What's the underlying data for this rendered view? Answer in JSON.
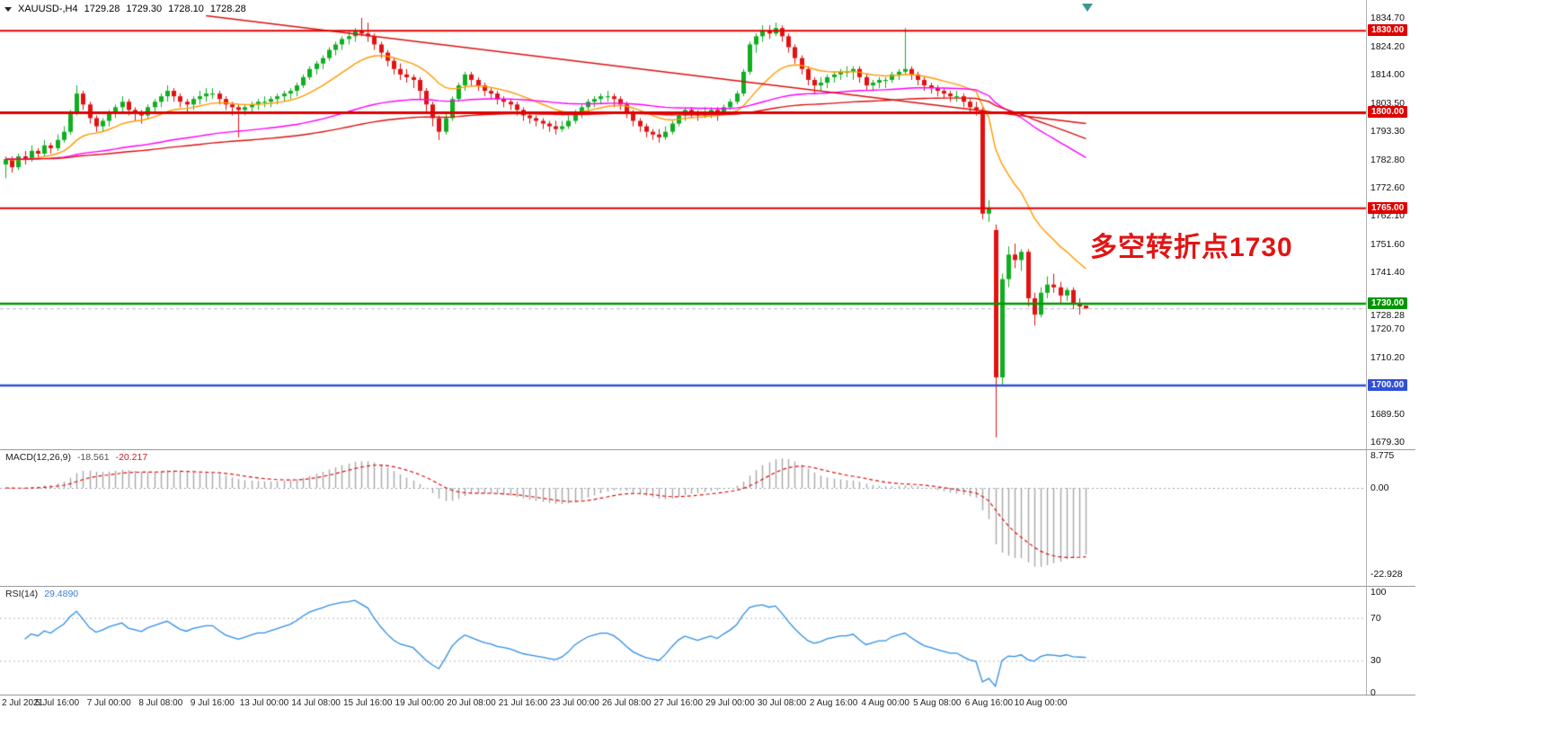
{
  "quote": {
    "symbol": "XAUUSD-,H4",
    "open": "1729.28",
    "high": "1729.30",
    "low": "1728.10",
    "close": "1728.28"
  },
  "annotation": {
    "text": "多空转折点1730",
    "color": "#e01515"
  },
  "chart_data": {
    "type": "candlestick",
    "symbol": "XAUUSD-",
    "timeframe": "H4",
    "ylim": [
      1679.3,
      1834.7
    ],
    "price_axis_ticks": [
      "1834.70",
      "1824.20",
      "1814.00",
      "1803.50",
      "1793.30",
      "1782.80",
      "1772.60",
      "1762.10",
      "1751.60",
      "1741.40",
      "1720.70",
      "1710.20",
      "1689.50",
      "1679.30"
    ],
    "time_labels": [
      "2 Jul 2021",
      "5 Jul 16:00",
      "7 Jul 00:00",
      "8 Jul 08:00",
      "9 Jul 16:00",
      "13 Jul 00:00",
      "14 Jul 08:00",
      "15 Jul 16:00",
      "19 Jul 00:00",
      "20 Jul 08:00",
      "21 Jul 16:00",
      "23 Jul 00:00",
      "26 Jul 08:00",
      "27 Jul 16:00",
      "29 Jul 00:00",
      "30 Jul 08:00",
      "2 Aug 16:00",
      "4 Aug 00:00",
      "5 Aug 08:00",
      "6 Aug 16:00",
      "10 Aug 00:00"
    ],
    "levels": [
      {
        "price": 1830,
        "label": "1830.00",
        "color": "#e00000",
        "width": 2
      },
      {
        "price": 1800,
        "label": "1800.00",
        "color": "#e00000",
        "width": 3
      },
      {
        "price": 1765,
        "label": "1765.00",
        "color": "#e00000",
        "width": 2
      },
      {
        "price": 1730,
        "label": "1730.00",
        "color": "#009600",
        "width": 2.5
      },
      {
        "price": 1700,
        "label": "1700.00",
        "color": "#3050d8",
        "width": 2.5
      }
    ],
    "current_price": {
      "label": "1728.28",
      "price": 1728.28
    },
    "trendline": {
      "from_index": 31,
      "from_price": 1835.5,
      "to_index": 167,
      "to_price": 1796,
      "color": "#dd1111"
    },
    "moving_averages": [
      {
        "name": "ma-fast",
        "period": 16,
        "color": "#ff9a00"
      },
      {
        "name": "ma-slow",
        "period": 80,
        "color": "#ff00ff"
      },
      {
        "name": "ma-baseline",
        "period": 140,
        "color": "#dd1111"
      }
    ],
    "indicators": {
      "macd": {
        "title": "MACD(12,26,9)",
        "fast": 12,
        "slow": 26,
        "signal": 9,
        "value_macd": "-18.561",
        "value_signal": "-20.217",
        "axis_labels": [
          {
            "value": 8.775,
            "label": "8.775"
          },
          {
            "value": 0,
            "label": "0.00"
          },
          {
            "value": -22.928,
            "label": "-22.928"
          }
        ],
        "histogram_color": "#a8a8a8",
        "signal_color": "#dd1111",
        "range": [
          -26,
          10
        ]
      },
      "rsi": {
        "title": "RSI(14)",
        "period": 14,
        "value": "29.4890",
        "levels": [
          70,
          30
        ],
        "axis_labels": [
          {
            "value": 100,
            "label": "100"
          },
          {
            "value": 70,
            "label": "70"
          },
          {
            "value": 30,
            "label": "30"
          },
          {
            "value": 0,
            "label": "0"
          }
        ],
        "line_color": "#2e8fe8",
        "range": [
          0,
          100
        ]
      }
    },
    "colors": {
      "bull": "#0faf20",
      "bear": "#e21212",
      "background": "#ffffff",
      "axis_text": "#111111"
    },
    "candles": [
      [
        1781,
        1784,
        1776,
        1783
      ],
      [
        1783,
        1784,
        1778,
        1780
      ],
      [
        1780,
        1785,
        1779,
        1784
      ],
      [
        1784,
        1786,
        1781,
        1783
      ],
      [
        1783,
        1788,
        1782,
        1786
      ],
      [
        1786,
        1787,
        1783,
        1785
      ],
      [
        1785,
        1790,
        1784,
        1788
      ],
      [
        1788,
        1789,
        1785,
        1787
      ],
      [
        1787,
        1792,
        1786,
        1790
      ],
      [
        1790,
        1795,
        1789,
        1793
      ],
      [
        1793,
        1801,
        1792,
        1800
      ],
      [
        1800,
        1810,
        1799,
        1807
      ],
      [
        1807,
        1808,
        1801,
        1803
      ],
      [
        1803,
        1804,
        1796,
        1798
      ],
      [
        1798,
        1799,
        1793,
        1795
      ],
      [
        1795,
        1798,
        1793,
        1797
      ],
      [
        1797,
        1801,
        1795,
        1800
      ],
      [
        1800,
        1803,
        1798,
        1802
      ],
      [
        1802,
        1806,
        1800,
        1804
      ],
      [
        1804,
        1805,
        1799,
        1801
      ],
      [
        1801,
        1802,
        1797,
        1800
      ],
      [
        1800,
        1801,
        1796,
        1799
      ],
      [
        1799,
        1803,
        1798,
        1802
      ],
      [
        1802,
        1805,
        1800,
        1804
      ],
      [
        1804,
        1807,
        1802,
        1806
      ],
      [
        1806,
        1810,
        1804,
        1808
      ],
      [
        1808,
        1809,
        1804,
        1806
      ],
      [
        1806,
        1807,
        1802,
        1804
      ],
      [
        1804,
        1805,
        1800,
        1803
      ],
      [
        1803,
        1806,
        1801,
        1805
      ],
      [
        1805,
        1808,
        1803,
        1806
      ],
      [
        1806,
        1809,
        1804,
        1807
      ],
      [
        1807,
        1809,
        1805,
        1807
      ],
      [
        1807,
        1808,
        1803,
        1805
      ],
      [
        1805,
        1806,
        1801,
        1803
      ],
      [
        1803,
        1804,
        1799,
        1802
      ],
      [
        1802,
        1803,
        1791,
        1801
      ],
      [
        1801,
        1803,
        1799,
        1802
      ],
      [
        1802,
        1804,
        1800,
        1803
      ],
      [
        1803,
        1805,
        1801,
        1804
      ],
      [
        1804,
        1806,
        1802,
        1804
      ],
      [
        1804,
        1806,
        1802,
        1805
      ],
      [
        1805,
        1807,
        1803,
        1806
      ],
      [
        1806,
        1808,
        1804,
        1807
      ],
      [
        1807,
        1809,
        1805,
        1808
      ],
      [
        1808,
        1811,
        1806,
        1810
      ],
      [
        1810,
        1814,
        1809,
        1813
      ],
      [
        1813,
        1817,
        1812,
        1816
      ],
      [
        1816,
        1819,
        1814,
        1818
      ],
      [
        1818,
        1821,
        1816,
        1820
      ],
      [
        1820,
        1824,
        1819,
        1823
      ],
      [
        1823,
        1826,
        1821,
        1825
      ],
      [
        1825,
        1828,
        1823,
        1827
      ],
      [
        1827,
        1830,
        1825,
        1828
      ],
      [
        1828,
        1831,
        1826,
        1830
      ],
      [
        1830,
        1834.7,
        1828,
        1829
      ],
      [
        1829,
        1833,
        1826,
        1828
      ],
      [
        1828,
        1829,
        1823,
        1825
      ],
      [
        1825,
        1826,
        1820,
        1822
      ],
      [
        1822,
        1823,
        1817,
        1819
      ],
      [
        1819,
        1820,
        1814,
        1816
      ],
      [
        1816,
        1818,
        1812,
        1814
      ],
      [
        1814,
        1816,
        1811,
        1813
      ],
      [
        1813,
        1814,
        1809,
        1812
      ],
      [
        1812,
        1813,
        1805,
        1808
      ],
      [
        1808,
        1809,
        1800,
        1803
      ],
      [
        1803,
        1804,
        1795,
        1798
      ],
      [
        1798,
        1799,
        1790,
        1793
      ],
      [
        1793,
        1800,
        1792,
        1798
      ],
      [
        1798,
        1806,
        1797,
        1805
      ],
      [
        1805,
        1811,
        1804,
        1810
      ],
      [
        1810,
        1815,
        1808,
        1814
      ],
      [
        1814,
        1815,
        1810,
        1812
      ],
      [
        1812,
        1813,
        1808,
        1810
      ],
      [
        1810,
        1811,
        1806,
        1808
      ],
      [
        1808,
        1809,
        1805,
        1807
      ],
      [
        1807,
        1808,
        1803,
        1805
      ],
      [
        1805,
        1806,
        1802,
        1804
      ],
      [
        1804,
        1805,
        1801,
        1803
      ],
      [
        1803,
        1804,
        1799,
        1801
      ],
      [
        1801,
        1802,
        1797,
        1799
      ],
      [
        1799,
        1800,
        1796,
        1798
      ],
      [
        1798,
        1799,
        1795,
        1797
      ],
      [
        1797,
        1798,
        1794,
        1796
      ],
      [
        1796,
        1797,
        1793,
        1795
      ],
      [
        1795,
        1797,
        1792,
        1794
      ],
      [
        1794,
        1797,
        1793,
        1795
      ],
      [
        1795,
        1799,
        1794,
        1797
      ],
      [
        1797,
        1801,
        1796,
        1800
      ],
      [
        1800,
        1803,
        1798,
        1802
      ],
      [
        1802,
        1805,
        1800,
        1804
      ],
      [
        1804,
        1806,
        1802,
        1805
      ],
      [
        1805,
        1807,
        1803,
        1806
      ],
      [
        1806,
        1808,
        1804,
        1806
      ],
      [
        1806,
        1807,
        1802,
        1805
      ],
      [
        1805,
        1806,
        1801,
        1803
      ],
      [
        1803,
        1804,
        1798,
        1800
      ],
      [
        1800,
        1801,
        1795,
        1797
      ],
      [
        1797,
        1798,
        1793,
        1795
      ],
      [
        1795,
        1796,
        1791,
        1793
      ],
      [
        1793,
        1794,
        1790,
        1792
      ],
      [
        1792,
        1794,
        1789,
        1791
      ],
      [
        1791,
        1795,
        1790,
        1793
      ],
      [
        1793,
        1797,
        1792,
        1796
      ],
      [
        1796,
        1800,
        1795,
        1799
      ],
      [
        1799,
        1802,
        1797,
        1801
      ],
      [
        1801,
        1802,
        1798,
        1800
      ],
      [
        1800,
        1801,
        1797,
        1799
      ],
      [
        1799,
        1802,
        1798,
        1800
      ],
      [
        1800,
        1802,
        1798,
        1801
      ],
      [
        1801,
        1802,
        1797,
        1800
      ],
      [
        1800,
        1803,
        1799,
        1802
      ],
      [
        1802,
        1805,
        1801,
        1804
      ],
      [
        1804,
        1808,
        1803,
        1807
      ],
      [
        1807,
        1816,
        1806,
        1815
      ],
      [
        1815,
        1826,
        1814,
        1825
      ],
      [
        1825,
        1829,
        1822,
        1828
      ],
      [
        1828,
        1832,
        1826,
        1830
      ],
      [
        1830,
        1832,
        1827,
        1829
      ],
      [
        1829,
        1833,
        1828,
        1831
      ],
      [
        1831,
        1832,
        1826,
        1828
      ],
      [
        1828,
        1829,
        1822,
        1824
      ],
      [
        1824,
        1825,
        1818,
        1820
      ],
      [
        1820,
        1821,
        1814,
        1816
      ],
      [
        1816,
        1817,
        1810,
        1812
      ],
      [
        1812,
        1813,
        1807,
        1810
      ],
      [
        1810,
        1813,
        1808,
        1811
      ],
      [
        1811,
        1814,
        1809,
        1813
      ],
      [
        1813,
        1815,
        1811,
        1814
      ],
      [
        1814,
        1816,
        1812,
        1815
      ],
      [
        1815,
        1817,
        1813,
        1815
      ],
      [
        1815,
        1817,
        1812,
        1816
      ],
      [
        1816,
        1817,
        1811,
        1813
      ],
      [
        1813,
        1814,
        1808,
        1810
      ],
      [
        1810,
        1812,
        1808,
        1811
      ],
      [
        1811,
        1813,
        1809,
        1812
      ],
      [
        1812,
        1813,
        1809,
        1812
      ],
      [
        1812,
        1815,
        1811,
        1814
      ],
      [
        1814,
        1816,
        1812,
        1815
      ],
      [
        1815,
        1831,
        1814,
        1816
      ],
      [
        1816,
        1817,
        1812,
        1814
      ],
      [
        1814,
        1815,
        1810,
        1812
      ],
      [
        1812,
        1813,
        1808,
        1810
      ],
      [
        1810,
        1811,
        1807,
        1809
      ],
      [
        1809,
        1810,
        1806,
        1808
      ],
      [
        1808,
        1809,
        1805,
        1807
      ],
      [
        1807,
        1808,
        1804,
        1806
      ],
      [
        1806,
        1808,
        1804,
        1806
      ],
      [
        1806,
        1807,
        1802,
        1804
      ],
      [
        1804,
        1805,
        1800,
        1802
      ],
      [
        1802,
        1804,
        1799,
        1801
      ],
      [
        1801,
        1802,
        1761,
        1763
      ],
      [
        1763,
        1768,
        1760,
        1765
      ],
      [
        1757,
        1759,
        1681,
        1703
      ],
      [
        1703,
        1741,
        1700,
        1739
      ],
      [
        1739,
        1751,
        1736,
        1748
      ],
      [
        1748,
        1752,
        1743,
        1746
      ],
      [
        1746,
        1750,
        1742,
        1749
      ],
      [
        1749,
        1750,
        1729,
        1732
      ],
      [
        1732,
        1734,
        1722,
        1726
      ],
      [
        1726,
        1736,
        1725,
        1734
      ],
      [
        1734,
        1740,
        1732,
        1737
      ],
      [
        1737,
        1741,
        1734,
        1736
      ],
      [
        1736,
        1738,
        1730,
        1733
      ],
      [
        1733,
        1736,
        1731,
        1735
      ],
      [
        1735,
        1736,
        1728,
        1730
      ],
      [
        1730,
        1732,
        1726,
        1729
      ],
      [
        1729.28,
        1729.3,
        1728.1,
        1728.28
      ]
    ]
  }
}
